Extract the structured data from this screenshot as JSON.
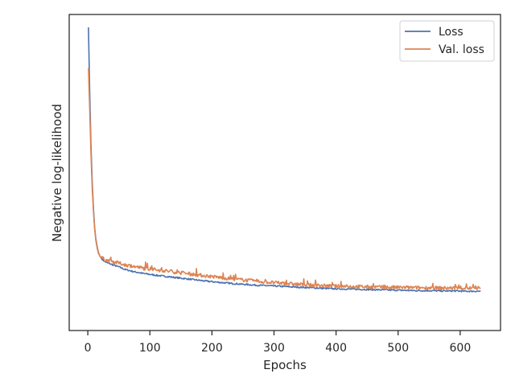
{
  "chart_data": {
    "type": "line",
    "title": "",
    "xlabel": "Epochs",
    "ylabel": "Negative log-likelihood",
    "xlim": [
      -30,
      665
    ],
    "x_ticks": [
      0,
      100,
      200,
      300,
      400,
      500,
      600
    ],
    "y_tick_labels_shown": false,
    "grid": false,
    "legend_position": "top-right",
    "series": [
      {
        "name": "Loss",
        "color": "#4c72b0",
        "points": [
          [
            1,
            1.0
          ],
          [
            3,
            0.78
          ],
          [
            5,
            0.6
          ],
          [
            7,
            0.47
          ],
          [
            9,
            0.38
          ],
          [
            11,
            0.31
          ],
          [
            13,
            0.27
          ],
          [
            15,
            0.245
          ],
          [
            17,
            0.225
          ],
          [
            20,
            0.21
          ],
          [
            25,
            0.197
          ],
          [
            30,
            0.19
          ],
          [
            40,
            0.182
          ],
          [
            50,
            0.175
          ],
          [
            60,
            0.166
          ],
          [
            75,
            0.158
          ],
          [
            90,
            0.152
          ],
          [
            110,
            0.146
          ],
          [
            130,
            0.141
          ],
          [
            150,
            0.136
          ],
          [
            170,
            0.131
          ],
          [
            190,
            0.126
          ],
          [
            210,
            0.122
          ],
          [
            230,
            0.118
          ],
          [
            250,
            0.115
          ],
          [
            270,
            0.112
          ],
          [
            290,
            0.11
          ],
          [
            310,
            0.108
          ],
          [
            330,
            0.106
          ],
          [
            350,
            0.104
          ],
          [
            370,
            0.102
          ],
          [
            390,
            0.1
          ],
          [
            410,
            0.099
          ],
          [
            430,
            0.098
          ],
          [
            450,
            0.097
          ],
          [
            470,
            0.096
          ],
          [
            490,
            0.095
          ],
          [
            510,
            0.094
          ],
          [
            530,
            0.093
          ],
          [
            550,
            0.093
          ],
          [
            570,
            0.092
          ],
          [
            590,
            0.092
          ],
          [
            610,
            0.091
          ],
          [
            633,
            0.091
          ]
        ]
      },
      {
        "name": "Val. loss",
        "color": "#dd8452",
        "points": [
          [
            1,
            0.86
          ],
          [
            3,
            0.72
          ],
          [
            5,
            0.57
          ],
          [
            7,
            0.45
          ],
          [
            9,
            0.37
          ],
          [
            11,
            0.305
          ],
          [
            13,
            0.265
          ],
          [
            15,
            0.24
          ],
          [
            17,
            0.222
          ],
          [
            20,
            0.21
          ],
          [
            25,
            0.203
          ],
          [
            30,
            0.198
          ],
          [
            40,
            0.193
          ],
          [
            50,
            0.188
          ],
          [
            60,
            0.182
          ],
          [
            75,
            0.176
          ],
          [
            90,
            0.17
          ],
          [
            110,
            0.165
          ],
          [
            130,
            0.16
          ],
          [
            150,
            0.154
          ],
          [
            170,
            0.149
          ],
          [
            190,
            0.144
          ],
          [
            210,
            0.139
          ],
          [
            230,
            0.134
          ],
          [
            250,
            0.13
          ],
          [
            270,
            0.126
          ],
          [
            290,
            0.122
          ],
          [
            310,
            0.119
          ],
          [
            330,
            0.116
          ],
          [
            350,
            0.113
          ],
          [
            370,
            0.111
          ],
          [
            390,
            0.109
          ],
          [
            410,
            0.108
          ],
          [
            430,
            0.107
          ],
          [
            450,
            0.106
          ],
          [
            470,
            0.105
          ],
          [
            490,
            0.104
          ],
          [
            510,
            0.104
          ],
          [
            530,
            0.103
          ],
          [
            550,
            0.103
          ],
          [
            570,
            0.102
          ],
          [
            590,
            0.102
          ],
          [
            610,
            0.102
          ],
          [
            633,
            0.102
          ]
        ]
      }
    ]
  }
}
